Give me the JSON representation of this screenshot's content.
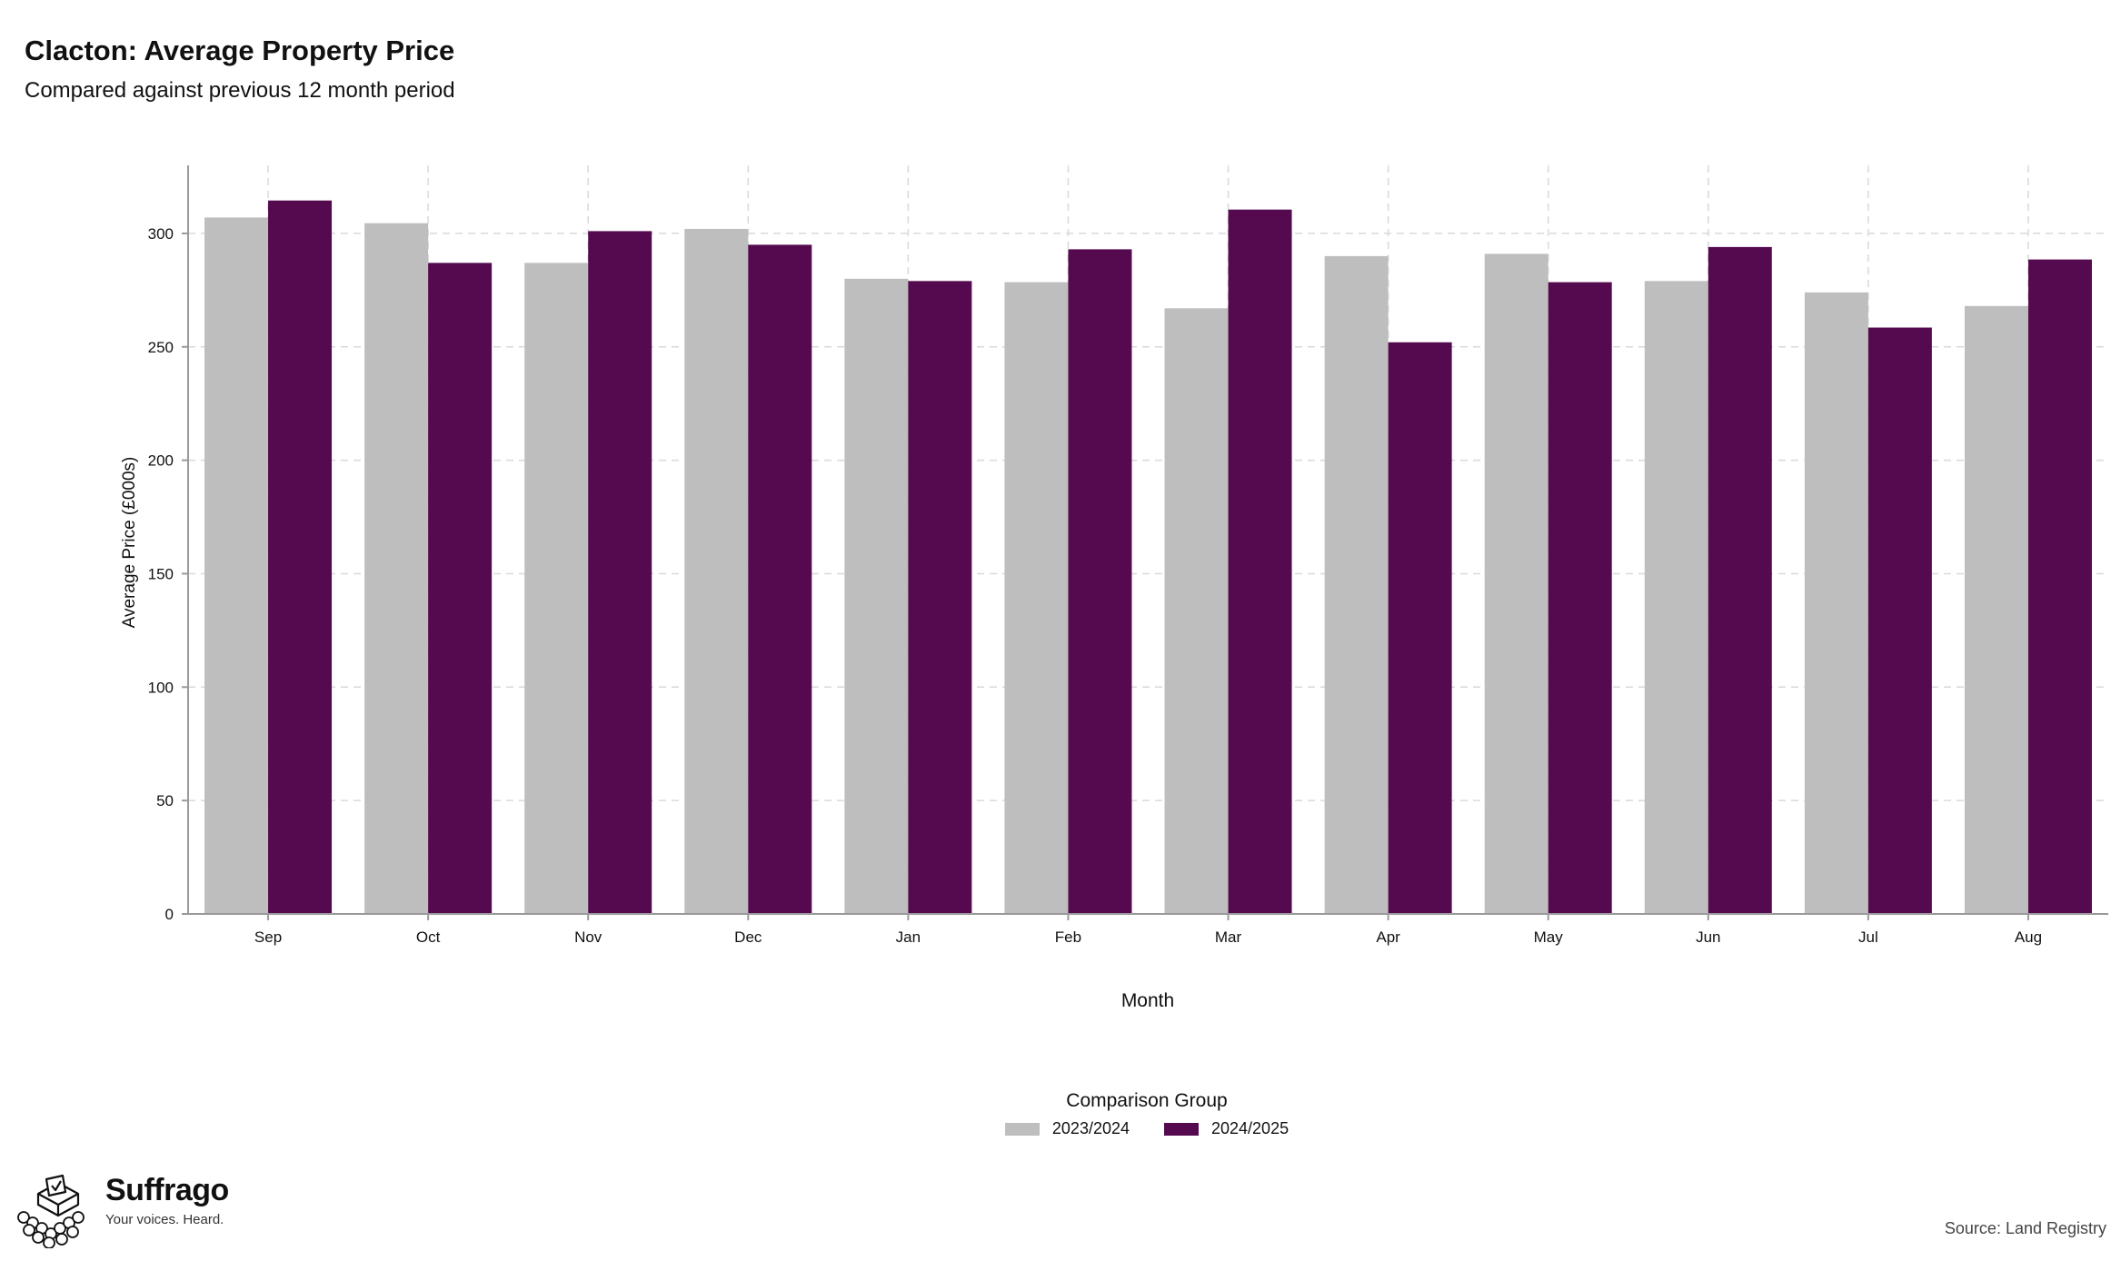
{
  "header": {
    "title": "Clacton: Average Property Price",
    "subtitle": "Compared against previous 12 month period"
  },
  "legend": {
    "title": "Comparison Group",
    "items": [
      {
        "label": "2023/2024",
        "color": "#bebebe"
      },
      {
        "label": "2024/2025",
        "color": "#550a50"
      }
    ]
  },
  "footer": {
    "brand_name": "Suffrago",
    "brand_tagline": "Your voices. Heard.",
    "source": "Source: Land Registry"
  },
  "chart_data": {
    "type": "bar",
    "xlabel": "Month",
    "ylabel": "Average Price (£000s)",
    "categories": [
      "Sep",
      "Oct",
      "Nov",
      "Dec",
      "Jan",
      "Feb",
      "Mar",
      "Apr",
      "May",
      "Jun",
      "Jul",
      "Aug"
    ],
    "series": [
      {
        "name": "2023/2024",
        "color": "#bebebe",
        "values": [
          307,
          304.5,
          287,
          302,
          280,
          278.5,
          267,
          290,
          291,
          279,
          274,
          268
        ]
      },
      {
        "name": "2024/2025",
        "color": "#550a50",
        "values": [
          314.5,
          287,
          301,
          295,
          279,
          293,
          310.5,
          252,
          278.5,
          294,
          258.5,
          288.5
        ]
      }
    ],
    "ylim": [
      0,
      330
    ],
    "yticks": [
      0,
      50,
      100,
      150,
      200,
      250,
      300
    ],
    "grid": true,
    "legend_position": "bottom"
  }
}
